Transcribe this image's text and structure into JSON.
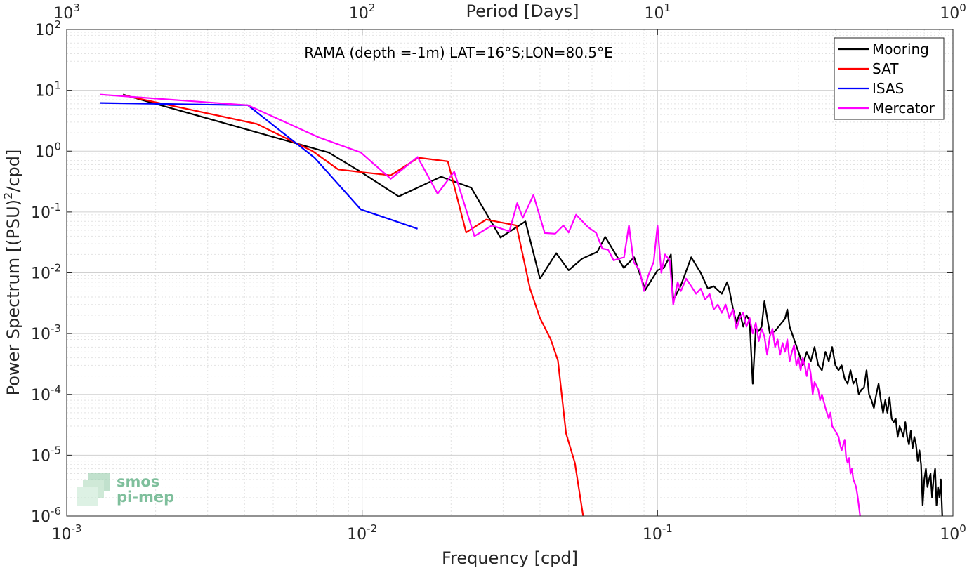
{
  "chart_data": {
    "type": "line",
    "title": "RAMA (depth =-1m) LAT=16°S;LON=80.5°E",
    "xlabel": "Frequency [cpd]",
    "ylabel": "Power Spectrum [(PSU)²/cpd]",
    "ylabel_parts": {
      "before": "Power Spectrum [(PSU)",
      "sup": "2",
      "after": "/cpd]"
    },
    "top_xlabel": "Period [Days]",
    "x_scale": "log",
    "y_scale": "log",
    "xlim": [
      0.001,
      1
    ],
    "ylim": [
      1e-06,
      100
    ],
    "grid": true,
    "legend_position": "top-right",
    "x_ticks": [
      {
        "value": 0.001,
        "base": "10",
        "exp": "-3"
      },
      {
        "value": 0.01,
        "base": "10",
        "exp": "-2"
      },
      {
        "value": 0.1,
        "base": "10",
        "exp": "-1"
      },
      {
        "value": 1,
        "base": "10",
        "exp": "0"
      }
    ],
    "y_ticks": [
      {
        "value": 1e-06,
        "base": "10",
        "exp": "-6"
      },
      {
        "value": 1e-05,
        "base": "10",
        "exp": "-5"
      },
      {
        "value": 0.0001,
        "base": "10",
        "exp": "-4"
      },
      {
        "value": 0.001,
        "base": "10",
        "exp": "-3"
      },
      {
        "value": 0.01,
        "base": "10",
        "exp": "-2"
      },
      {
        "value": 0.1,
        "base": "10",
        "exp": "-1"
      },
      {
        "value": 1,
        "base": "10",
        "exp": "0"
      },
      {
        "value": 10,
        "base": "10",
        "exp": "1"
      },
      {
        "value": 100,
        "base": "10",
        "exp": "2"
      }
    ],
    "top_ticks": [
      {
        "value": 0.001,
        "base": "10",
        "exp": "3"
      },
      {
        "value": 0.01,
        "base": "10",
        "exp": "2"
      },
      {
        "value": 0.1,
        "base": "10",
        "exp": "1"
      },
      {
        "value": 1,
        "base": "10",
        "exp": "0"
      }
    ],
    "series": [
      {
        "name": "Mooring",
        "color": "#000000",
        "points": [
          [
            0.00155,
            8.5
          ],
          [
            0.0077,
            0.95
          ],
          [
            0.0098,
            0.47
          ],
          [
            0.0133,
            0.18
          ],
          [
            0.0185,
            0.38
          ],
          [
            0.0234,
            0.25
          ],
          [
            0.0294,
            0.038
          ],
          [
            0.0357,
            0.07
          ],
          [
            0.04,
            0.008
          ],
          [
            0.0454,
            0.021
          ],
          [
            0.05,
            0.011
          ],
          [
            0.0555,
            0.017
          ],
          [
            0.0625,
            0.022
          ],
          [
            0.0665,
            0.039
          ],
          [
            0.0769,
            0.012
          ],
          [
            0.0833,
            0.018
          ],
          [
            0.0909,
            0.0052
          ],
          [
            0.1,
            0.011
          ],
          [
            0.105,
            0.012
          ],
          [
            0.111,
            0.02
          ],
          [
            0.113,
            0.0035
          ],
          [
            0.12,
            0.0062
          ],
          [
            0.13,
            0.018
          ],
          [
            0.14,
            0.01
          ],
          [
            0.148,
            0.0055
          ],
          [
            0.155,
            0.006
          ],
          [
            0.165,
            0.0045
          ],
          [
            0.172,
            0.007
          ],
          [
            0.175,
            0.0052
          ],
          [
            0.18,
            0.0026
          ],
          [
            0.185,
            0.0015
          ],
          [
            0.19,
            0.0022
          ],
          [
            0.195,
            0.0013
          ],
          [
            0.2,
            0.002
          ],
          [
            0.205,
            0.0016
          ],
          [
            0.21,
            0.00015
          ],
          [
            0.215,
            0.0012
          ],
          [
            0.22,
            0.0011
          ],
          [
            0.225,
            0.0013
          ],
          [
            0.23,
            0.0034
          ],
          [
            0.24,
            0.001
          ],
          [
            0.25,
            0.0011
          ],
          [
            0.26,
            0.0014
          ],
          [
            0.27,
            0.00175
          ],
          [
            0.275,
            0.0025
          ],
          [
            0.28,
            0.0013
          ],
          [
            0.29,
            0.0008
          ],
          [
            0.3,
            0.0005
          ],
          [
            0.31,
            0.0003
          ],
          [
            0.32,
            0.0005
          ],
          [
            0.33,
            0.00035
          ],
          [
            0.34,
            0.0006
          ],
          [
            0.35,
            0.0003
          ],
          [
            0.36,
            0.00025
          ],
          [
            0.37,
            0.0005
          ],
          [
            0.38,
            0.00035
          ],
          [
            0.39,
            0.0006
          ],
          [
            0.4,
            0.0003
          ],
          [
            0.41,
            0.00025
          ],
          [
            0.42,
            0.0003
          ],
          [
            0.43,
            0.00018
          ],
          [
            0.44,
            0.00015
          ],
          [
            0.45,
            0.00025
          ],
          [
            0.46,
            0.00015
          ],
          [
            0.47,
            0.00018
          ],
          [
            0.48,
            0.0001
          ],
          [
            0.49,
            0.00012
          ],
          [
            0.5,
            0.00013
          ],
          [
            0.51,
            0.00025
          ],
          [
            0.52,
            0.0001
          ],
          [
            0.53,
            8e-05
          ],
          [
            0.54,
            6e-05
          ],
          [
            0.55,
            0.0001
          ],
          [
            0.56,
            0.00015
          ],
          [
            0.57,
            8e-05
          ],
          [
            0.58,
            5e-05
          ],
          [
            0.59,
            8e-05
          ],
          [
            0.6,
            5e-05
          ],
          [
            0.61,
            9e-05
          ],
          [
            0.62,
            4e-05
          ],
          [
            0.63,
            3.5e-05
          ],
          [
            0.64,
            4e-05
          ],
          [
            0.65,
            2e-05
          ],
          [
            0.66,
            3e-05
          ],
          [
            0.67,
            2.5e-05
          ],
          [
            0.68,
            2e-05
          ],
          [
            0.69,
            3.5e-05
          ],
          [
            0.7,
            2e-05
          ],
          [
            0.71,
            1.5e-05
          ],
          [
            0.72,
            2.5e-05
          ],
          [
            0.73,
            1.3e-05
          ],
          [
            0.74,
            2e-05
          ],
          [
            0.75,
            1.5e-05
          ],
          [
            0.76,
            8e-06
          ],
          [
            0.77,
            1.2e-05
          ],
          [
            0.78,
            7e-06
          ],
          [
            0.79,
            1.5e-06
          ],
          [
            0.8,
            4e-06
          ],
          [
            0.81,
            6e-06
          ],
          [
            0.82,
            3e-06
          ],
          [
            0.83,
            4e-06
          ],
          [
            0.84,
            5e-06
          ],
          [
            0.85,
            2e-06
          ],
          [
            0.86,
            4e-06
          ],
          [
            0.87,
            6e-06
          ],
          [
            0.88,
            1.5e-06
          ],
          [
            0.89,
            3e-06
          ],
          [
            0.9,
            2e-06
          ],
          [
            0.91,
            4e-06
          ],
          [
            0.92,
            1e-06
          ]
        ]
      },
      {
        "name": "SAT",
        "color": "#ff0000",
        "points": [
          [
            0.00155,
            8.3
          ],
          [
            0.0044,
            2.8
          ],
          [
            0.0068,
            1.0
          ],
          [
            0.0083,
            0.5
          ],
          [
            0.01,
            0.45
          ],
          [
            0.0125,
            0.4
          ],
          [
            0.0155,
            0.78
          ],
          [
            0.0195,
            0.68
          ],
          [
            0.0225,
            0.046
          ],
          [
            0.0263,
            0.075
          ],
          [
            0.0333,
            0.06
          ],
          [
            0.037,
            0.0055
          ],
          [
            0.04,
            0.0018
          ],
          [
            0.0435,
            0.0008
          ],
          [
            0.046,
            0.00036
          ],
          [
            0.049,
            2.3e-05
          ],
          [
            0.0525,
            7.5e-06
          ],
          [
            0.056,
            1e-06
          ]
        ]
      },
      {
        "name": "ISAS",
        "color": "#0000ff",
        "points": [
          [
            0.0013,
            6.2
          ],
          [
            0.0041,
            5.7
          ],
          [
            0.0069,
            0.78
          ],
          [
            0.0099,
            0.11
          ],
          [
            0.0125,
            0.075
          ],
          [
            0.0154,
            0.053
          ]
        ]
      },
      {
        "name": "Mercator",
        "color": "#ff00ff",
        "points": [
          [
            0.0013,
            8.5
          ],
          [
            0.0041,
            5.7
          ],
          [
            0.0071,
            1.7
          ],
          [
            0.0099,
            0.95
          ],
          [
            0.0125,
            0.35
          ],
          [
            0.0154,
            0.8
          ],
          [
            0.018,
            0.2
          ],
          [
            0.0205,
            0.46
          ],
          [
            0.024,
            0.04
          ],
          [
            0.0275,
            0.06
          ],
          [
            0.0315,
            0.048
          ],
          [
            0.0335,
            0.14
          ],
          [
            0.035,
            0.08
          ],
          [
            0.038,
            0.19
          ],
          [
            0.0415,
            0.045
          ],
          [
            0.045,
            0.044
          ],
          [
            0.048,
            0.06
          ],
          [
            0.05,
            0.046
          ],
          [
            0.053,
            0.09
          ],
          [
            0.058,
            0.057
          ],
          [
            0.062,
            0.045
          ],
          [
            0.065,
            0.025
          ],
          [
            0.068,
            0.024
          ],
          [
            0.071,
            0.016
          ],
          [
            0.074,
            0.017
          ],
          [
            0.077,
            0.018
          ],
          [
            0.08,
            0.06
          ],
          [
            0.083,
            0.015
          ],
          [
            0.087,
            0.011
          ],
          [
            0.09,
            0.005
          ],
          [
            0.093,
            0.009
          ],
          [
            0.097,
            0.015
          ],
          [
            0.1,
            0.06
          ],
          [
            0.103,
            0.01
          ],
          [
            0.106,
            0.02
          ],
          [
            0.11,
            0.016
          ],
          [
            0.113,
            0.003
          ],
          [
            0.117,
            0.007
          ],
          [
            0.12,
            0.005
          ],
          [
            0.125,
            0.008
          ],
          [
            0.13,
            0.006
          ],
          [
            0.135,
            0.0045
          ],
          [
            0.14,
            0.0055
          ],
          [
            0.145,
            0.0036
          ],
          [
            0.15,
            0.0045
          ],
          [
            0.155,
            0.0025
          ],
          [
            0.16,
            0.003
          ],
          [
            0.165,
            0.0022
          ],
          [
            0.17,
            0.003
          ],
          [
            0.175,
            0.0018
          ],
          [
            0.18,
            0.0025
          ],
          [
            0.185,
            0.0012
          ],
          [
            0.19,
            0.0018
          ],
          [
            0.195,
            0.0022
          ],
          [
            0.2,
            0.0013
          ],
          [
            0.205,
            0.0018
          ],
          [
            0.21,
            0.001
          ],
          [
            0.215,
            0.0015
          ],
          [
            0.22,
            0.00075
          ],
          [
            0.225,
            0.0012
          ],
          [
            0.23,
            0.0009
          ],
          [
            0.235,
            0.00045
          ],
          [
            0.24,
            0.0009
          ],
          [
            0.245,
            0.0012
          ],
          [
            0.25,
            0.0006
          ],
          [
            0.255,
            0.0008
          ],
          [
            0.26,
            0.00045
          ],
          [
            0.265,
            0.0007
          ],
          [
            0.27,
            0.0005
          ],
          [
            0.275,
            0.0008
          ],
          [
            0.28,
            0.00035
          ],
          [
            0.285,
            0.0005
          ],
          [
            0.29,
            0.00065
          ],
          [
            0.295,
            0.0003
          ],
          [
            0.3,
            0.0004
          ],
          [
            0.305,
            0.00025
          ],
          [
            0.31,
            0.0004
          ],
          [
            0.315,
            0.0003
          ],
          [
            0.32,
            0.0002
          ],
          [
            0.325,
            0.00032
          ],
          [
            0.33,
            0.00022
          ],
          [
            0.335,
            0.0001
          ],
          [
            0.34,
            0.00016
          ],
          [
            0.35,
            0.00012
          ],
          [
            0.355,
            8e-05
          ],
          [
            0.36,
            0.0001
          ],
          [
            0.37,
            6e-05
          ],
          [
            0.38,
            4e-05
          ],
          [
            0.385,
            5e-05
          ],
          [
            0.39,
            3e-05
          ],
          [
            0.4,
            2.5e-05
          ],
          [
            0.41,
            2e-05
          ],
          [
            0.415,
            1.5e-05
          ],
          [
            0.42,
            1.2e-05
          ],
          [
            0.43,
            1.8e-05
          ],
          [
            0.435,
            9e-06
          ],
          [
            0.44,
            7.5e-06
          ],
          [
            0.445,
            9e-06
          ],
          [
            0.45,
            5e-06
          ],
          [
            0.455,
            6e-06
          ],
          [
            0.46,
            4e-06
          ],
          [
            0.465,
            3.5e-06
          ],
          [
            0.47,
            3e-06
          ],
          [
            0.475,
            2.2e-06
          ],
          [
            0.48,
            1.5e-06
          ],
          [
            0.485,
            1e-06
          ]
        ]
      }
    ]
  },
  "watermark": {
    "line1": "smos",
    "line2": "pi-mep"
  }
}
